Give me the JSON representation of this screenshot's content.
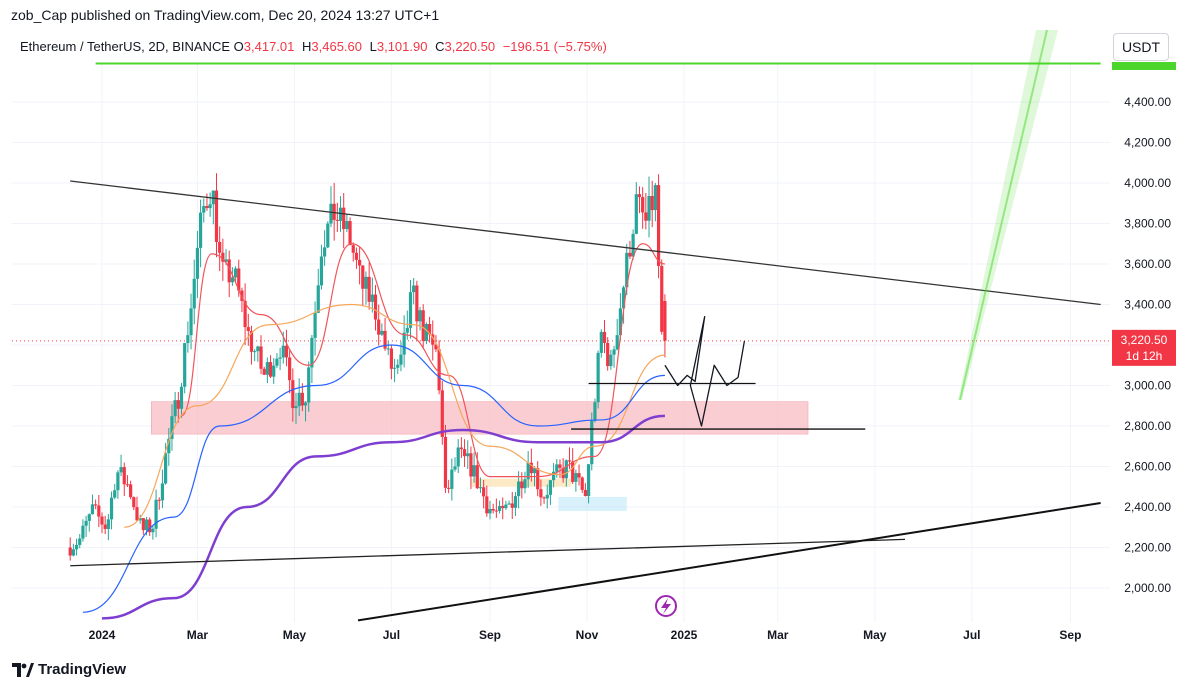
{
  "header": {
    "published_text": "zob_Cap published on TradingView.com, Dec 20, 2024 13:27 UTC+1"
  },
  "symbol_bar": {
    "title": "Ethereum / TetherUS, 2D, BINANCE",
    "open_label": "O",
    "open_value": "3,417.01",
    "high_label": "H",
    "high_value": "3,465.60",
    "low_label": "L",
    "low_value": "3,101.90",
    "close_label": "C",
    "close_value": "3,220.50",
    "change_value": "−196.51 (−5.75%)"
  },
  "currency_button": "USDT",
  "footer": {
    "brand": "TradingView"
  },
  "colors": {
    "up": "#26a69a",
    "down": "#f23645",
    "ema_fast": "#f0555a",
    "ema_mid": "#f7a65a",
    "ema_slow": "#2962ff",
    "ema_long": "#7e3fd1",
    "zone": "#f7bcc3",
    "green_line": "#4cd62b",
    "price_tag": "#f23645"
  },
  "chart_data": {
    "type": "candlestick",
    "symbol": "Ethereum / TetherUS",
    "interval": "2D",
    "exchange": "BINANCE",
    "ylim": [
      1850,
      4700
    ],
    "y_ticks": [
      "2,000.00",
      "2,200.00",
      "2,400.00",
      "2,600.00",
      "2,800.00",
      "3,000.00",
      "3,200.00",
      "3,400.00",
      "3,600.00",
      "3,800.00",
      "4,000.00",
      "4,200.00",
      "4,400.00"
    ],
    "y_tick_values": [
      2000,
      2200,
      2400,
      2600,
      2800,
      3000,
      3200,
      3400,
      3600,
      3800,
      4000,
      4200,
      4400
    ],
    "x_ticks": [
      "2024",
      "Mar",
      "May",
      "Jul",
      "Sep",
      "Nov",
      "2025",
      "Mar",
      "May",
      "Jul",
      "Sep"
    ],
    "x_tick_dates": [
      "2024-01-01",
      "2024-03-01",
      "2024-05-01",
      "2024-07-01",
      "2024-09-01",
      "2024-11-01",
      "2025-01-01",
      "2025-03-01",
      "2025-05-01",
      "2025-07-01",
      "2025-09-01"
    ],
    "last_price": {
      "label": "3,220.50",
      "countdown": "1d 12h",
      "value": 3220.5
    },
    "ohlc": {
      "open": 3417.01,
      "high": 3465.6,
      "low": 3101.9,
      "close": 3220.5,
      "change": -196.51,
      "change_pct": -5.75
    },
    "price_path": [
      [
        "2023-12-12",
        2200
      ],
      [
        "2023-12-20",
        2240
      ],
      [
        "2023-12-28",
        2380
      ],
      [
        "2024-01-06",
        2300
      ],
      [
        "2024-01-12",
        2580
      ],
      [
        "2024-01-20",
        2500
      ],
      [
        "2024-01-28",
        2280
      ],
      [
        "2024-02-04",
        2310
      ],
      [
        "2024-02-12",
        2650
      ],
      [
        "2024-02-20",
        2950
      ],
      [
        "2024-02-28",
        3400
      ],
      [
        "2024-03-06",
        3850
      ],
      [
        "2024-03-12",
        4000
      ],
      [
        "2024-03-18",
        3550
      ],
      [
        "2024-03-26",
        3550
      ],
      [
        "2024-04-04",
        3250
      ],
      [
        "2024-04-14",
        3050
      ],
      [
        "2024-04-24",
        3200
      ],
      [
        "2024-05-02",
        2950
      ],
      [
        "2024-05-10",
        2950
      ],
      [
        "2024-05-20",
        3700
      ],
      [
        "2024-05-28",
        3850
      ],
      [
        "2024-06-06",
        3750
      ],
      [
        "2024-06-14",
        3500
      ],
      [
        "2024-06-22",
        3400
      ],
      [
        "2024-07-02",
        3100
      ],
      [
        "2024-07-08",
        3050
      ],
      [
        "2024-07-16",
        3450
      ],
      [
        "2024-07-24",
        3250
      ],
      [
        "2024-08-01",
        3150
      ],
      [
        "2024-08-06",
        2450
      ],
      [
        "2024-08-14",
        2650
      ],
      [
        "2024-08-22",
        2600
      ],
      [
        "2024-09-02",
        2400
      ],
      [
        "2024-09-10",
        2350
      ],
      [
        "2024-09-18",
        2450
      ],
      [
        "2024-09-28",
        2650
      ],
      [
        "2024-10-06",
        2450
      ],
      [
        "2024-10-14",
        2550
      ],
      [
        "2024-10-22",
        2600
      ],
      [
        "2024-11-02",
        2450
      ],
      [
        "2024-11-06",
        2800
      ],
      [
        "2024-11-12",
        3250
      ],
      [
        "2024-11-18",
        3100
      ],
      [
        "2024-11-26",
        3500
      ],
      [
        "2024-12-04",
        3900
      ],
      [
        "2024-12-10",
        3800
      ],
      [
        "2024-12-16",
        3950
      ],
      [
        "2024-12-20",
        3220
      ]
    ],
    "moving_averages": [
      {
        "color": "#f0555a",
        "points": [
          [
            "2024-02-20",
            2850
          ],
          [
            "2024-03-10",
            3650
          ],
          [
            "2024-04-10",
            3350
          ],
          [
            "2024-05-10",
            3100
          ],
          [
            "2024-06-06",
            3700
          ],
          [
            "2024-07-10",
            3250
          ],
          [
            "2024-08-06",
            3050
          ],
          [
            "2024-09-01",
            2550
          ],
          [
            "2024-10-01",
            2550
          ],
          [
            "2024-11-06",
            2650
          ],
          [
            "2024-12-06",
            3700
          ],
          [
            "2024-12-20",
            3600
          ]
        ]
      },
      {
        "color": "#f7a65a",
        "points": [
          [
            "2024-01-15",
            2300
          ],
          [
            "2024-03-01",
            2900
          ],
          [
            "2024-04-15",
            3300
          ],
          [
            "2024-06-06",
            3400
          ],
          [
            "2024-07-15",
            3300
          ],
          [
            "2024-09-01",
            2700
          ],
          [
            "2024-10-15",
            2560
          ],
          [
            "2024-11-06",
            2700
          ],
          [
            "2024-12-20",
            3150
          ]
        ]
      },
      {
        "color": "#2962ff",
        "points": [
          [
            "2023-12-20",
            1880
          ],
          [
            "2024-02-15",
            2350
          ],
          [
            "2024-03-15",
            2800
          ],
          [
            "2024-05-15",
            3000
          ],
          [
            "2024-07-01",
            3200
          ],
          [
            "2024-08-15",
            3000
          ],
          [
            "2024-10-01",
            2800
          ],
          [
            "2024-11-10",
            2830
          ],
          [
            "2024-12-20",
            3050
          ]
        ]
      },
      {
        "color": "#7e3fd1",
        "points": [
          [
            "2024-01-01",
            1850
          ],
          [
            "2024-02-15",
            1950
          ],
          [
            "2024-04-01",
            2400
          ],
          [
            "2024-05-15",
            2650
          ],
          [
            "2024-07-01",
            2720
          ],
          [
            "2024-08-15",
            2780
          ],
          [
            "2024-10-01",
            2720
          ],
          [
            "2024-11-10",
            2720
          ],
          [
            "2024-12-20",
            2850
          ]
        ]
      }
    ],
    "trend_lines": [
      {
        "from": [
          "2023-12-12",
          4010
        ],
        "to": [
          "2025-09-20",
          3400
        ],
        "color": "#333333"
      },
      {
        "from": [
          "2023-12-12",
          2110
        ],
        "to": [
          "2025-05-20",
          2240
        ],
        "color": "#222222"
      },
      {
        "from": [
          "2024-06-10",
          1840
        ],
        "to": [
          "2025-09-20",
          2420
        ],
        "color": "#111111"
      },
      {
        "from": [
          "2023-12-28",
          4590
        ],
        "to": [
          "2025-09-20",
          4590
        ],
        "color": "#4cd62b"
      },
      {
        "from": [
          "2024-11-02",
          3010
        ],
        "to": [
          "2025-02-15",
          3010
        ],
        "color": "#111111"
      },
      {
        "from": [
          "2024-10-22",
          2785
        ],
        "to": [
          "2025-04-25",
          2785
        ],
        "color": "#111111"
      }
    ],
    "zones": [
      {
        "from": [
          "2024-02-01",
          2920
        ],
        "to": [
          "2025-03-20",
          2760
        ],
        "color": "#f7bcc3"
      }
    ],
    "projection_path": [
      [
        "2024-12-20",
        3100
      ],
      [
        "2024-12-28",
        3000
      ],
      [
        "2025-01-03",
        3050
      ],
      [
        "2025-01-08",
        3020
      ],
      [
        "2025-01-14",
        3340
      ],
      [
        "2025-01-05",
        3000
      ],
      [
        "2025-01-12",
        2800
      ],
      [
        "2025-01-20",
        3100
      ],
      [
        "2025-01-28",
        3000
      ],
      [
        "2025-02-04",
        3040
      ],
      [
        "2025-02-08",
        3220
      ]
    ]
  }
}
